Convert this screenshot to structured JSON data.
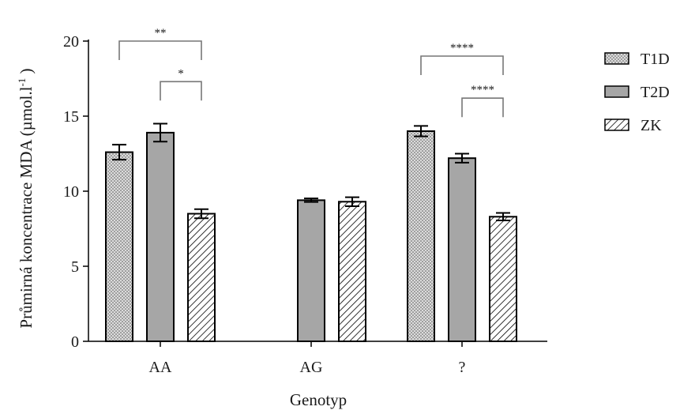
{
  "chart_data": {
    "type": "bar",
    "title": "",
    "xlabel": "Genotyp",
    "ylabel_main": "Průmirná koncentrace MDA (µmol.l",
    "ylabel_sup": "-1",
    "ylabel_close": " )",
    "ylim": [
      0,
      20
    ],
    "yticks": [
      0,
      5,
      10,
      15,
      20
    ],
    "categories": [
      "AA",
      "AG",
      "?"
    ],
    "series": [
      {
        "name": "T1D",
        "pattern": "dots",
        "values": [
          12.6,
          null,
          14.0
        ],
        "errors": [
          0.5,
          null,
          0.35
        ]
      },
      {
        "name": "T2D",
        "pattern": "solid",
        "values": [
          13.9,
          9.4,
          12.2
        ],
        "errors": [
          0.6,
          0.12,
          0.3
        ]
      },
      {
        "name": "ZK",
        "pattern": "hatch",
        "values": [
          8.5,
          9.3,
          8.3
        ],
        "errors": [
          0.3,
          0.3,
          0.25
        ]
      }
    ],
    "significance": [
      {
        "category": "AA",
        "from": "T1D",
        "to": "ZK",
        "label": "**",
        "level": 20.0
      },
      {
        "category": "AA",
        "from": "T2D",
        "to": "ZK",
        "label": "*",
        "level": 17.3
      },
      {
        "category": "?",
        "from": "T1D",
        "to": "ZK",
        "label": "****",
        "level": 19.0
      },
      {
        "category": "?",
        "from": "T2D",
        "to": "ZK",
        "label": "****",
        "level": 16.2
      }
    ],
    "legend": {
      "position": "right"
    },
    "grid": false,
    "colors": {
      "bar_fill": "#a6a6a6",
      "stroke": "#000000"
    }
  }
}
